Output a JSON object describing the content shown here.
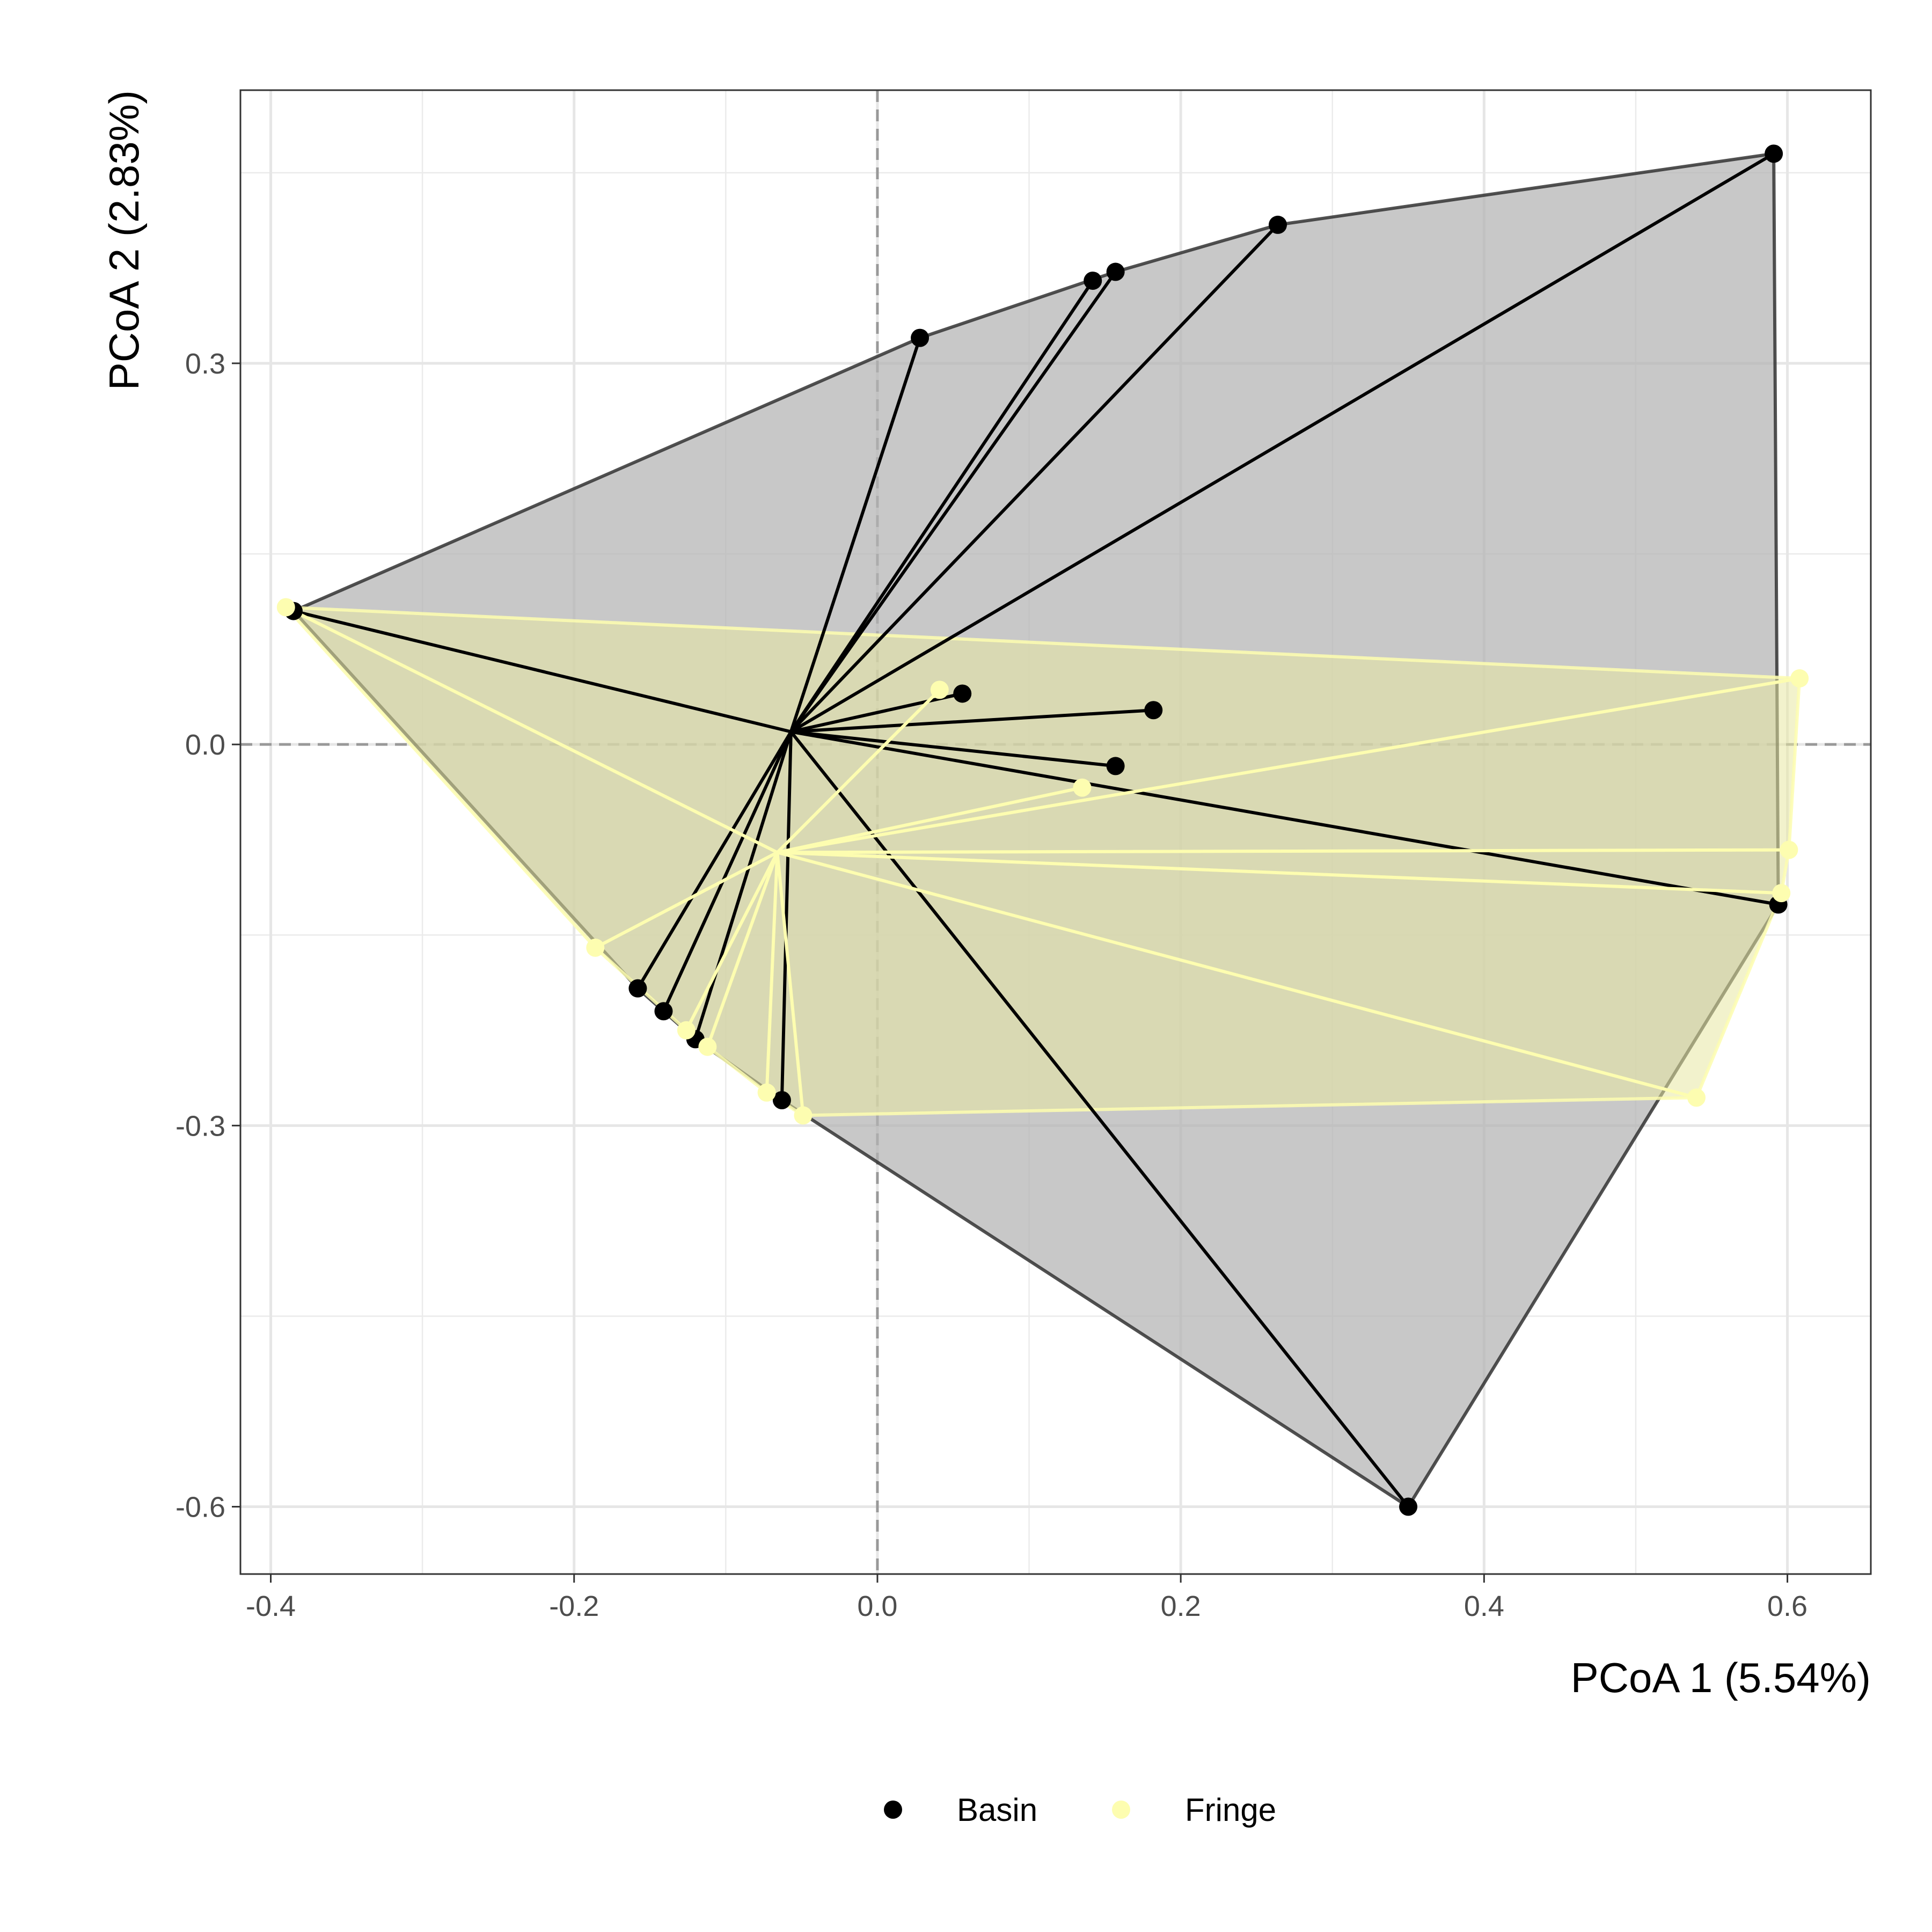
{
  "chart_data": {
    "type": "scatter",
    "subtype": "pcoa-ordination-with-convex-hulls-and-centroid-spiders",
    "xlabel": "PCoA 1 (5.54%)",
    "ylabel": "PCoA 2 (2.83%)",
    "xlim": [
      -0.42,
      0.655
    ],
    "ylim": [
      -0.653,
      0.515
    ],
    "x_ticks": [
      -0.4,
      -0.2,
      0.0,
      0.2,
      0.4,
      0.6
    ],
    "x_tick_labels": [
      "-0.4",
      "-0.2",
      "0.0",
      "0.2",
      "0.4",
      "0.6"
    ],
    "y_ticks": [
      -0.6,
      -0.3,
      0.0,
      0.3
    ],
    "y_tick_labels": [
      "-0.6",
      "-0.3",
      "0.0",
      "0.3"
    ],
    "x_minor_ticks": [
      -0.3,
      -0.1,
      0.1,
      0.3,
      0.5
    ],
    "y_minor_ticks": [
      -0.45,
      -0.15,
      0.15,
      0.45
    ],
    "reference_lines": {
      "x": 0,
      "y": 0,
      "style": "dashed"
    },
    "grid": true,
    "legend": {
      "position": "bottom"
    },
    "series": [
      {
        "name": "Basin",
        "color": "#000000",
        "hull_fill": "#b3b3b3",
        "hull_stroke": "#333333",
        "centroid": {
          "x": -0.057,
          "y": 0.01
        },
        "points": [
          {
            "x": -0.385,
            "y": 0.105
          },
          {
            "x": 0.028,
            "y": 0.32
          },
          {
            "x": 0.142,
            "y": 0.365
          },
          {
            "x": 0.157,
            "y": 0.372
          },
          {
            "x": 0.264,
            "y": 0.409
          },
          {
            "x": 0.591,
            "y": 0.465
          },
          {
            "x": 0.056,
            "y": 0.04
          },
          {
            "x": 0.182,
            "y": 0.027
          },
          {
            "x": 0.157,
            "y": -0.017
          },
          {
            "x": 0.594,
            "y": -0.126
          },
          {
            "x": 0.35,
            "y": -0.6
          },
          {
            "x": -0.158,
            "y": -0.192
          },
          {
            "x": -0.141,
            "y": -0.21
          },
          {
            "x": -0.12,
            "y": -0.232
          },
          {
            "x": -0.063,
            "y": -0.28
          }
        ]
      },
      {
        "name": "Fringe",
        "color": "#fdfdb0",
        "hull_fill": "#e8e8a3",
        "hull_stroke": "#fdfdb0",
        "centroid": {
          "x": -0.066,
          "y": -0.085
        },
        "points": [
          {
            "x": -0.39,
            "y": 0.108
          },
          {
            "x": 0.041,
            "y": 0.043
          },
          {
            "x": 0.135,
            "y": -0.034
          },
          {
            "x": 0.608,
            "y": 0.052
          },
          {
            "x": 0.601,
            "y": -0.083
          },
          {
            "x": 0.596,
            "y": -0.117
          },
          {
            "x": 0.54,
            "y": -0.278
          },
          {
            "x": -0.186,
            "y": -0.16
          },
          {
            "x": -0.126,
            "y": -0.225
          },
          {
            "x": -0.112,
            "y": -0.238
          },
          {
            "x": -0.073,
            "y": -0.274
          },
          {
            "x": -0.049,
            "y": -0.292
          }
        ]
      }
    ]
  }
}
